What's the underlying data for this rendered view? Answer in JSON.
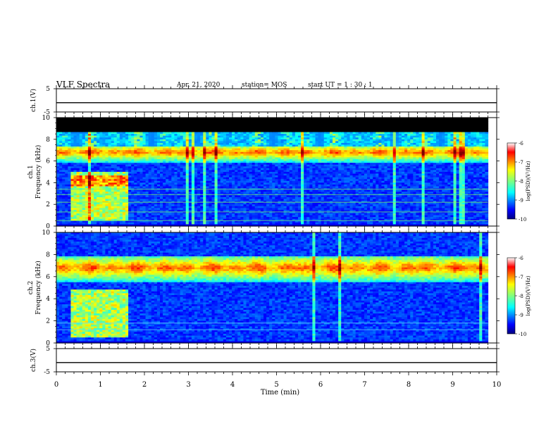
{
  "header": {
    "title": "VLF Spectra",
    "date": "Apr. 21, 2020",
    "station": "station= MOS",
    "start": "start UT =  1 : 30 : 1"
  },
  "chart_data": [
    {
      "type": "line",
      "name": "ch1-voltage",
      "ylabel": "ch.1(V)",
      "ylim": [
        -5,
        5
      ],
      "yticks": [
        "5",
        "-5"
      ],
      "x": [
        0,
        10
      ],
      "values": [
        -1,
        -1
      ]
    },
    {
      "type": "heatmap",
      "name": "ch1-spectrogram",
      "ylabel": "ch.1\nFrequency (kHz)",
      "ylim": [
        0,
        10
      ],
      "yticks": [
        "0",
        "2",
        "4",
        "6",
        "8",
        "10"
      ],
      "xlim": [
        0,
        9.8
      ],
      "emission_band_khz": [
        5.8,
        7.4
      ],
      "emission_peak_khz": 6.8,
      "burst_x_min": [
        0.3,
        1.65
      ],
      "burst_freq_khz": [
        0.5,
        5
      ],
      "colorbar": {
        "label": "log(PSD)(V²/Hz)",
        "range": [
          -10,
          -6
        ],
        "ticks": [
          "-6",
          "-7",
          "-8",
          "-9",
          "-10"
        ]
      }
    },
    {
      "type": "heatmap",
      "name": "ch2-spectrogram",
      "ylabel": "ch.2\nFrequency (kHz)",
      "ylim": [
        0,
        10
      ],
      "yticks": [
        "0",
        "2",
        "4",
        "6",
        "8",
        "10"
      ],
      "xlim": [
        0,
        9.8
      ],
      "emission_band_khz": [
        5.5,
        7.8
      ],
      "emission_peak_khz": 6.8,
      "burst_x_min": [
        0.3,
        1.65
      ],
      "burst_freq_khz": [
        0.5,
        4.8
      ],
      "colorbar": {
        "label": "log(PSD)(V²/Hz)",
        "range": [
          -10,
          -6
        ],
        "ticks": [
          "-6",
          "-7",
          "-8",
          "-9",
          "-10"
        ]
      }
    },
    {
      "type": "line",
      "name": "ch3-voltage",
      "ylabel": "ch.3(V)",
      "ylim": [
        -5,
        5
      ],
      "yticks": [
        "5",
        "-5"
      ],
      "x": [
        0,
        10
      ],
      "values": [
        -1,
        -1
      ]
    }
  ],
  "xaxis": {
    "label": "Time (min)",
    "xlim": [
      0,
      10
    ],
    "ticks": [
      "0",
      "1",
      "2",
      "3",
      "4",
      "5",
      "6",
      "7",
      "8",
      "9",
      "10"
    ]
  }
}
